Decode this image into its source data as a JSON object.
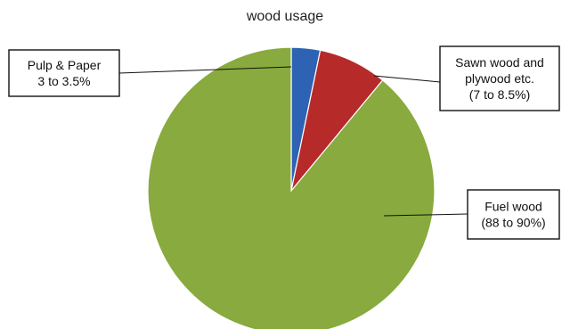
{
  "chart_data": {
    "type": "pie",
    "title": "wood usage",
    "slices": [
      {
        "name": "Pulp & Paper",
        "range_text": "3 to 3.5%",
        "value": 3.25,
        "color": "#2e63b4",
        "label_lines": [
          "Pulp & Paper",
          "3 to 3.5%"
        ]
      },
      {
        "name": "Sawn wood and plywood etc.",
        "range_text": "7 to 8.5%",
        "value": 7.75,
        "color": "#b72a2a",
        "label_lines": [
          "Sawn wood and",
          "plywood etc.",
          "(7 to 8.5%)"
        ]
      },
      {
        "name": "Fuel wood",
        "range_text": "88 to 90%",
        "value": 89,
        "color": "#88aa3e",
        "label_lines": [
          "Fuel wood",
          "(88 to 90%)"
        ]
      }
    ]
  }
}
